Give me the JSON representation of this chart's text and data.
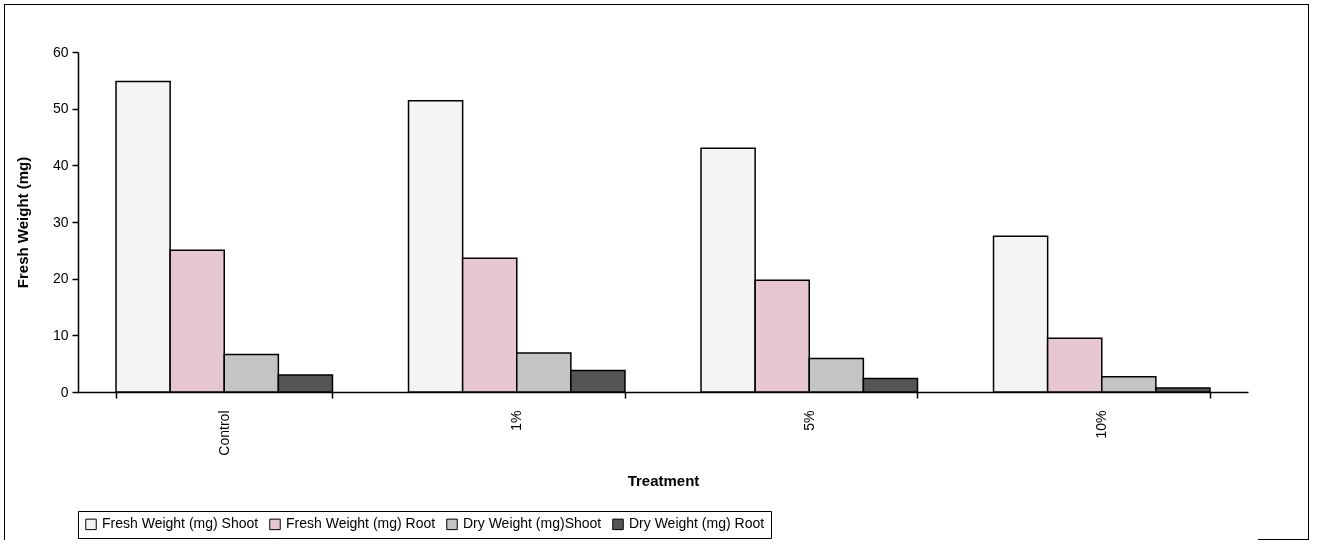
{
  "chart_data": {
    "type": "bar",
    "xlabel": "Treatment",
    "ylabel": "Fresh Weight (mg)",
    "categories": [
      "Control",
      "1%",
      "5%",
      "10%"
    ],
    "series": [
      {
        "name": "Fresh Weight (mg) Shoot",
        "color": "#f4f4f4",
        "values": [
          54.8,
          51.4,
          43.0,
          27.5
        ]
      },
      {
        "name": "Fresh Weight (mg) Root",
        "color": "#e6c6d2",
        "values": [
          25.0,
          23.6,
          19.7,
          9.5
        ]
      },
      {
        "name": "Dry Weight (mg)Shoot",
        "color": "#c4c4c4",
        "values": [
          6.6,
          6.9,
          5.9,
          2.7
        ]
      },
      {
        "name": "Dry Weight (mg) Root",
        "color": "#555555",
        "values": [
          3.0,
          3.8,
          2.4,
          0.7
        ]
      }
    ],
    "ylim": [
      0,
      60
    ],
    "yticks": [
      0,
      10,
      20,
      30,
      40,
      50,
      60
    ],
    "grid": false,
    "legend": "bottom"
  }
}
